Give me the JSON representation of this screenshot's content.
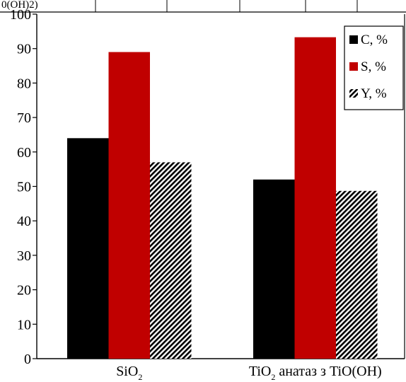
{
  "chart_data": {
    "type": "bar",
    "categories": [
      {
        "main": "SiO",
        "sub": "2",
        "rest": ""
      },
      {
        "main": "TiO",
        "sub": "2",
        "rest": " анатаз з TiO(OH)"
      }
    ],
    "series": [
      {
        "name": "C, %",
        "values": [
          64,
          52
        ],
        "color": "#000000",
        "pattern": "solid"
      },
      {
        "name": "S, %",
        "values": [
          89,
          93.3
        ],
        "color": "#c00000",
        "pattern": "solid"
      },
      {
        "name": "Y, %",
        "values": [
          57,
          48.7
        ],
        "color": "#000000",
        "pattern": "hatched"
      }
    ],
    "ylim": [
      0,
      100
    ],
    "yticks": [
      0,
      10,
      20,
      30,
      40,
      50,
      60,
      70,
      80,
      90,
      100
    ],
    "grid": false,
    "legend_position": "top-right",
    "top_fragment": "0(ОН)2)"
  }
}
